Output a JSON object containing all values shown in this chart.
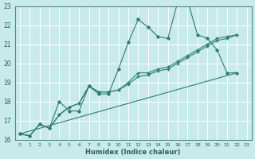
{
  "title": "",
  "xlabel": "Humidex (Indice chaleur)",
  "ylabel": "",
  "bg_color": "#c8eaea",
  "grid_color": "#ffffff",
  "line_color": "#2e7d6e",
  "xlim": [
    -0.5,
    23.5
  ],
  "ylim": [
    16,
    23
  ],
  "xticks": [
    0,
    1,
    2,
    3,
    4,
    5,
    6,
    7,
    8,
    9,
    10,
    11,
    12,
    13,
    14,
    15,
    16,
    17,
    18,
    19,
    20,
    21,
    22,
    23
  ],
  "yticks": [
    16,
    17,
    18,
    19,
    20,
    21,
    22,
    23
  ],
  "series_main": {
    "x": [
      0,
      1,
      2,
      3,
      4,
      5,
      6,
      7,
      8,
      9,
      10,
      11,
      12,
      13,
      14,
      15,
      16,
      17,
      18,
      19,
      20,
      21,
      22
    ],
    "y": [
      16.3,
      16.2,
      16.8,
      16.6,
      18.0,
      17.5,
      17.5,
      18.8,
      18.4,
      18.4,
      19.7,
      21.1,
      22.3,
      21.9,
      21.4,
      21.3,
      23.2,
      23.3,
      21.5,
      21.3,
      20.7,
      19.5,
      19.5
    ]
  },
  "series_line2": {
    "x": [
      0,
      1,
      2,
      3,
      4,
      5,
      6,
      7,
      8,
      9,
      10,
      11,
      12,
      13,
      14,
      15,
      16,
      17,
      18,
      19,
      20,
      21,
      22
    ],
    "y": [
      16.3,
      16.2,
      16.8,
      16.6,
      17.3,
      17.7,
      17.9,
      18.8,
      18.5,
      18.5,
      18.6,
      19.0,
      19.5,
      19.5,
      19.7,
      19.8,
      20.1,
      20.4,
      20.7,
      21.0,
      21.3,
      21.4,
      21.5
    ]
  },
  "series_line3": {
    "x": [
      0,
      1,
      2,
      3,
      4,
      5,
      6,
      7,
      8,
      9,
      10,
      11,
      12,
      13,
      14,
      15,
      16,
      17,
      18,
      19,
      20,
      21,
      22
    ],
    "y": [
      16.3,
      16.2,
      16.8,
      16.6,
      17.3,
      17.7,
      17.9,
      18.8,
      18.5,
      18.5,
      18.6,
      18.9,
      19.3,
      19.4,
      19.6,
      19.7,
      20.0,
      20.3,
      20.6,
      20.9,
      21.2,
      21.3,
      21.5
    ]
  },
  "series_flat": {
    "x": [
      0,
      22
    ],
    "y": [
      16.3,
      19.5
    ]
  }
}
